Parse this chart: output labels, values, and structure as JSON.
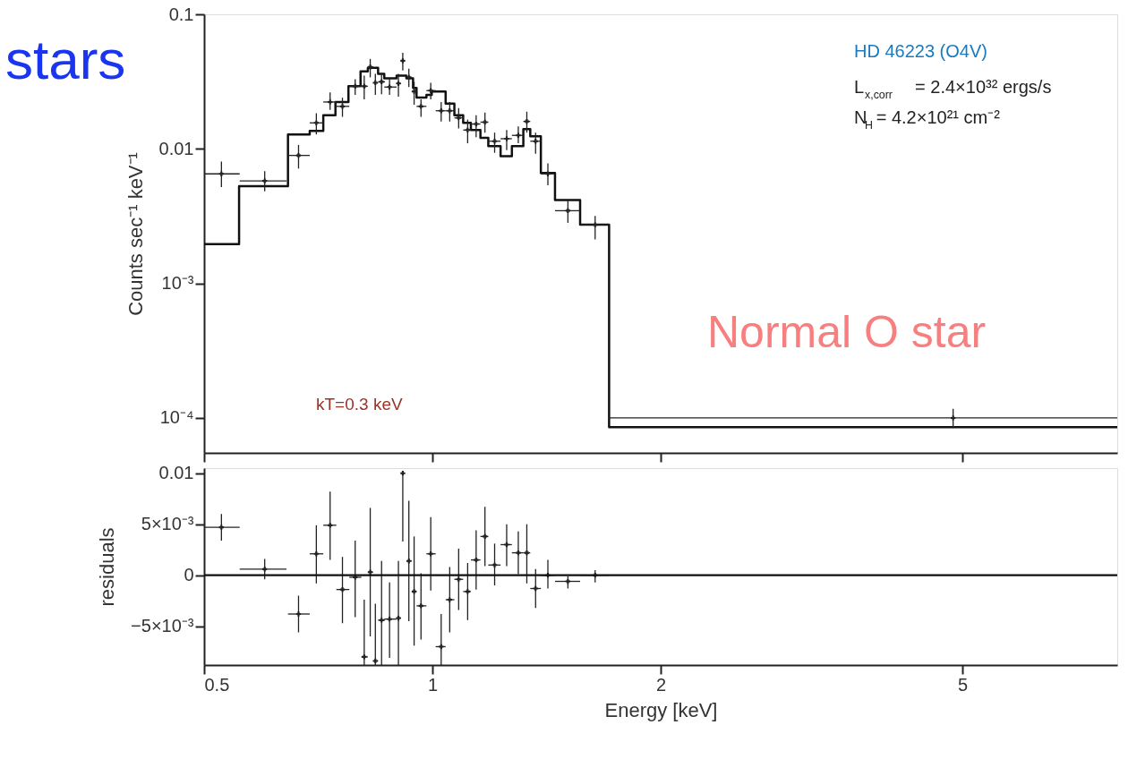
{
  "chart_data": [
    {
      "type": "step",
      "log": "xy",
      "ylabel": "Counts sec⁻¹ keV⁻¹",
      "tick_labels": "y",
      "grid": false,
      "xlim": [
        0.5,
        8
      ],
      "xticks": [
        0.5,
        1,
        2,
        5
      ],
      "ylim": [
        5.5e-05,
        0.1
      ],
      "yticks": [
        0.1,
        0.01,
        {
          "value": 0.001,
          "label": "10⁻³"
        },
        {
          "value": 0.0001,
          "label": "10⁻⁴"
        }
      ],
      "annotations": [
        "stars",
        "HD 46223 (O4V)",
        "L$_{x,corr}$ = 2.4×10³² ergs/s",
        "N$_{H}$ = 4.2×10²¹ cm⁻²",
        "Normal O star",
        "kT=0.3 keV"
      ],
      "series": [
        {
          "color": "#111111",
          "x": [
            0.5,
            0.556,
            0.645,
            0.689,
            0.718,
            0.745,
            0.775,
            0.804,
            0.822,
            0.848,
            0.864,
            0.897,
            0.924,
            0.943,
            0.953,
            0.982,
            0.998,
            1.041,
            1.069,
            1.098,
            1.124,
            1.157,
            1.185,
            1.23,
            1.273,
            1.318,
            1.346,
            1.39,
            1.451,
            1.566,
            1.71,
            8
          ],
          "values": [
            0.00196,
            0.00528,
            0.0128,
            0.0136,
            0.0178,
            0.0223,
            0.0292,
            0.0377,
            0.0401,
            0.0361,
            0.0334,
            0.035,
            0.0334,
            0.0284,
            0.0241,
            0.0252,
            0.0267,
            0.0217,
            0.0178,
            0.0156,
            0.0138,
            0.0121,
            0.0105,
            0.00881,
            0.0105,
            0.014,
            0.0124,
            0.00662,
            0.00416,
            0.00273,
            8.55e-05,
            8.55e-05
          ]
        },
        {
          "type": "scatter",
          "marker": "cross",
          "color": "#222222",
          "x": [
            0.527,
            0.601,
            0.666,
            0.703,
            0.733,
            0.761,
            0.791,
            0.813,
            0.828,
            0.841,
            0.857,
            0.878,
            0.902,
            0.914,
            0.931,
            0.946,
            0.966,
            0.995,
            1.027,
            1.054,
            1.083,
            1.113,
            1.142,
            1.173,
            1.208,
            1.253,
            1.298,
            1.332,
            1.368,
            1.42,
            1.509,
            1.639,
            4.86
          ],
          "values": [
            0.00652,
            0.00578,
            0.00894,
            0.0156,
            0.0223,
            0.0207,
            0.0292,
            0.0292,
            0.0406,
            0.031,
            0.0315,
            0.0288,
            0.0306,
            0.0452,
            0.034,
            0.0267,
            0.0207,
            0.0271,
            0.0192,
            0.0192,
            0.017,
            0.0138,
            0.0153,
            0.0158,
            0.0114,
            0.0119,
            0.0126,
            0.016,
            0.0114,
            0.00652,
            0.00347,
            0.00273,
            0.0001
          ],
          "errors": [
            [
              0.00521,
              0.00804
            ],
            [
              0.00483,
              0.00682
            ],
            [
              0.00714,
              0.0107
            ],
            [
              0.0128,
              0.0184
            ],
            [
              0.0195,
              0.0263
            ],
            [
              0.0173,
              0.024
            ],
            [
              0.0252,
              0.033
            ],
            [
              0.0233,
              0.035
            ],
            [
              0.034,
              0.0466
            ],
            [
              0.0252,
              0.0361
            ],
            [
              0.0255,
              0.0366
            ],
            [
              0.0252,
              0.0335
            ],
            [
              0.0244,
              0.0361
            ],
            [
              0.0383,
              0.0517
            ],
            [
              0.0288,
              0.0395
            ],
            [
              0.0213,
              0.0315
            ],
            [
              0.0173,
              0.0233
            ],
            [
              0.0233,
              0.031
            ],
            [
              0.016,
              0.0223
            ],
            [
              0.016,
              0.0223
            ],
            [
              0.0142,
              0.0201
            ],
            [
              0.011,
              0.0165
            ],
            [
              0.0122,
              0.0178
            ],
            [
              0.0132,
              0.0186
            ],
            [
              0.00935,
              0.0132
            ],
            [
              0.00978,
              0.0138
            ],
            [
              0.011,
              0.0147
            ],
            [
              0.0132,
              0.0189
            ],
            [
              0.00921,
              0.0132
            ],
            [
              0.00537,
              0.00781
            ],
            [
              0.00282,
              0.00416
            ],
            [
              0.00212,
              0.00317
            ],
            [
              8.41e-05,
              0.000117
            ]
          ],
          "xerrors": [
            [
              0.501,
              0.557
            ],
            [
              0.557,
              0.642
            ],
            [
              0.645,
              0.689
            ],
            [
              0.689,
              0.718
            ],
            [
              0.718,
              0.747
            ],
            [
              0.747,
              0.777
            ],
            [
              0.777,
              0.806
            ],
            [
              0.806,
              0.822
            ],
            [
              0.822,
              0.835
            ],
            [
              0.835,
              0.848
            ],
            [
              0.848,
              0.866
            ],
            [
              0.864,
              0.897
            ],
            [
              0.897,
              0.909
            ],
            [
              0.909,
              0.92
            ],
            [
              0.924,
              0.939
            ],
            [
              0.939,
              0.953
            ],
            [
              0.953,
              0.982
            ],
            [
              0.982,
              1.01
            ],
            [
              1.01,
              1.041
            ],
            [
              1.041,
              1.069
            ],
            [
              1.069,
              1.098
            ],
            [
              1.098,
              1.124
            ],
            [
              1.124,
              1.157
            ],
            [
              1.157,
              1.185
            ],
            [
              1.185,
              1.23
            ],
            [
              1.23,
              1.273
            ],
            [
              1.273,
              1.318
            ],
            [
              1.318,
              1.346
            ],
            [
              1.346,
              1.39
            ],
            [
              1.39,
              1.451
            ],
            [
              1.451,
              1.566
            ],
            [
              1.566,
              1.71
            ],
            [
              1.71,
              8
            ]
          ]
        }
      ]
    },
    {
      "type": "scatter",
      "log": "x",
      "xlabel": "Energy [keV]",
      "ylabel": "residuals",
      "grid": false,
      "marker": "cross",
      "xlim": [
        0.5,
        8
      ],
      "xticks": [
        0.5,
        1,
        2,
        5
      ],
      "ylim": [
        -0.0088,
        0.0105
      ],
      "yticks": [
        0.01,
        {
          "value": 0.005,
          "label": "5×10⁻³"
        },
        0,
        {
          "value": -0.005,
          "label": "−5×10⁻³"
        }
      ],
      "ref_lines": [
        {
          "axis": "y",
          "value": 0,
          "color": "#111111"
        }
      ],
      "series": [
        {
          "color": "#222222",
          "x": [
            0.527,
            0.601,
            0.666,
            0.703,
            0.733,
            0.761,
            0.791,
            0.813,
            0.828,
            0.841,
            0.857,
            0.878,
            0.902,
            0.914,
            0.931,
            0.946,
            0.966,
            0.995,
            1.027,
            1.054,
            1.083,
            1.113,
            1.142,
            1.173,
            1.208,
            1.253,
            1.298,
            1.332,
            1.368,
            1.42,
            1.509,
            1.639
          ],
          "values": [
            0.0047,
            0.0006,
            -0.0038,
            0.0021,
            0.0049,
            -0.0014,
            -0.0002,
            -0.008,
            0.0003,
            -0.0084,
            -0.0044,
            -0.0043,
            -0.0042,
            0.01,
            0.0014,
            -0.0016,
            -0.003,
            0.0021,
            -0.007,
            -0.0024,
            -0.0004,
            -0.0016,
            0.0015,
            0.0038,
            0.001,
            0.003,
            0.0022,
            0.0022,
            -0.0013,
            0.0,
            -0.0006,
            0.0
          ],
          "errors": [
            [
              0.0034,
              0.006
            ],
            [
              -0.0004,
              0.0016
            ],
            [
              -0.0056,
              -0.002
            ],
            [
              -0.0008,
              0.0049
            ],
            [
              0.0015,
              0.0082
            ],
            [
              -0.0047,
              0.0018
            ],
            [
              -0.0041,
              0.0034
            ],
            [
              -0.0088,
              -0.0024
            ],
            [
              -0.006,
              0.0066
            ],
            [
              -0.0088,
              -0.0028
            ],
            [
              -0.0088,
              0.0014
            ],
            [
              -0.0081,
              -0.0007
            ],
            [
              -0.0088,
              0.0014
            ],
            [
              0.0033,
              0.0102
            ],
            [
              -0.0045,
              0.0073
            ],
            [
              -0.0069,
              0.0038
            ],
            [
              -0.0063,
              0.0002
            ],
            [
              -0.0015,
              0.0057
            ],
            [
              -0.0088,
              -0.0038
            ],
            [
              -0.0056,
              0.0008
            ],
            [
              -0.0034,
              0.0026
            ],
            [
              -0.0044,
              0.0012
            ],
            [
              -0.0014,
              0.0044
            ],
            [
              0.0009,
              0.0067
            ],
            [
              -0.001,
              0.0031
            ],
            [
              0.0009,
              0.005
            ],
            [
              0.0001,
              0.0043
            ],
            [
              -0.0008,
              0.005
            ],
            [
              -0.0032,
              0.0006
            ],
            [
              -0.0013,
              0.0015
            ],
            [
              -0.0013,
              -0.0001
            ],
            [
              -0.0007,
              0.0005
            ]
          ],
          "xerrors": [
            [
              0.501,
              0.557
            ],
            [
              0.557,
              0.642
            ],
            [
              0.645,
              0.689
            ],
            [
              0.689,
              0.718
            ],
            [
              0.718,
              0.747
            ],
            [
              0.747,
              0.777
            ],
            [
              0.777,
              0.806
            ],
            [
              0.806,
              0.822
            ],
            [
              0.822,
              0.835
            ],
            [
              0.835,
              0.848
            ],
            [
              0.848,
              0.866
            ],
            [
              0.864,
              0.897
            ],
            [
              0.897,
              0.909
            ],
            [
              0.909,
              0.92
            ],
            [
              0.924,
              0.939
            ],
            [
              0.939,
              0.953
            ],
            [
              0.953,
              0.982
            ],
            [
              0.982,
              1.01
            ],
            [
              1.01,
              1.041
            ],
            [
              1.041,
              1.069
            ],
            [
              1.069,
              1.098
            ],
            [
              1.098,
              1.124
            ],
            [
              1.124,
              1.157
            ],
            [
              1.157,
              1.185
            ],
            [
              1.185,
              1.23
            ],
            [
              1.23,
              1.273
            ],
            [
              1.273,
              1.318
            ],
            [
              1.318,
              1.346
            ],
            [
              1.346,
              1.39
            ],
            [
              1.39,
              1.451
            ],
            [
              1.451,
              1.566
            ],
            [
              1.566,
              1.71
            ]
          ]
        }
      ]
    }
  ]
}
